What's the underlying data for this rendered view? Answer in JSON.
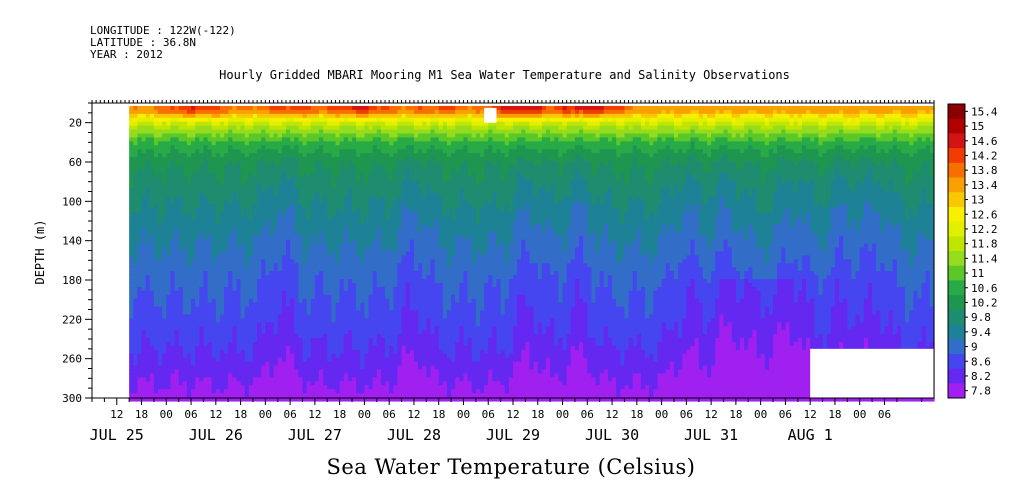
{
  "header": {
    "longitude": "LONGITUDE : 122W(-122)",
    "latitude": "LATITUDE : 36.8N",
    "year": "YEAR : 2012"
  },
  "chart_data": {
    "type": "heatmap",
    "title": "Hourly Gridded MBARI Mooring M1 Sea Water Temperature and Salinity Observations",
    "xlabel": "Sea Water Temperature (Celsius)",
    "ylabel": "DEPTH (m)",
    "x_hour_ticks": [
      "12",
      "18",
      "00",
      "06",
      "12",
      "18",
      "00",
      "06",
      "12",
      "18",
      "00",
      "06",
      "12",
      "18",
      "00",
      "06",
      "12",
      "18",
      "00",
      "06",
      "12",
      "18",
      "00",
      "06",
      "12",
      "18",
      "00",
      "06",
      "12",
      "18",
      "00",
      "06"
    ],
    "x_day_labels": [
      "JUL 25",
      "JUL 26",
      "JUL 27",
      "JUL 28",
      "JUL 29",
      "JUL 30",
      "JUL 31",
      "AUG  1"
    ],
    "xlim_hours": [
      6,
      210
    ],
    "data_start_hour": 15,
    "y_ticks": [
      20,
      60,
      100,
      140,
      180,
      220,
      260,
      300
    ],
    "ylim": [
      300,
      0
    ],
    "colorbar_levels": [
      15.4,
      15,
      14.6,
      14.2,
      13.8,
      13.4,
      13,
      12.6,
      12.2,
      11.8,
      11.4,
      11,
      10.6,
      10.2,
      9.8,
      9.4,
      9,
      8.6,
      8.2,
      7.8
    ],
    "colors": [
      "#8b0000",
      "#b00000",
      "#d21414",
      "#f03c00",
      "#f86e00",
      "#f8a000",
      "#f8c800",
      "#f8f000",
      "#e0f000",
      "#c0e600",
      "#96dc1e",
      "#5ac828",
      "#28aa46",
      "#1e9650",
      "#1e8c6e",
      "#1e8296",
      "#326ec8",
      "#4646f0",
      "#6428f0",
      "#a020f0"
    ],
    "contour_depths": [
      [
        300,
        8.0
      ],
      [
        290,
        8.15
      ],
      [
        270,
        8.4
      ],
      [
        250,
        8.6
      ],
      [
        220,
        8.85
      ],
      [
        180,
        9.1
      ],
      [
        140,
        9.45
      ],
      [
        100,
        9.85
      ],
      [
        60,
        10.3
      ],
      [
        40,
        10.9
      ],
      [
        25,
        11.8
      ],
      [
        15,
        12.7
      ],
      [
        8,
        13.6
      ]
    ],
    "warm_events": [
      {
        "hour": 31,
        "temp": 14.9
      },
      {
        "hour": 55,
        "temp": 14.6
      },
      {
        "hour": 70,
        "temp": 15.0
      },
      {
        "hour": 90,
        "temp": 14.4
      },
      {
        "hour": 110,
        "temp": 15.3
      },
      {
        "hour": 126,
        "temp": 15.2
      },
      {
        "hour": 150,
        "temp": 13.4
      },
      {
        "hour": 170,
        "temp": 12.8
      }
    ],
    "cool_upwelling_hours": [
      52,
      84,
      112,
      124,
      150,
      160,
      176,
      188,
      196
    ],
    "missing_blocks": [
      {
        "hour_start": 101,
        "hour_end": 104,
        "depth_top": 5,
        "depth_bottom": 20
      },
      {
        "hour_start": 180,
        "hour_end": 210,
        "depth_top": 250,
        "depth_bottom": 300
      }
    ]
  }
}
